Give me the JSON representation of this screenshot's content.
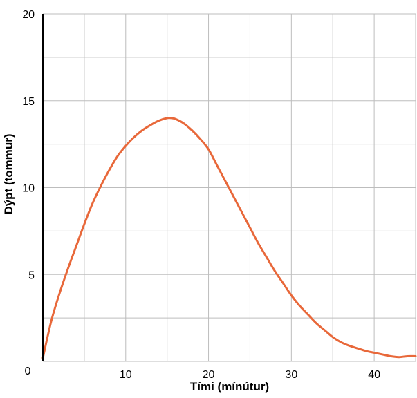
{
  "chart_data": {
    "type": "line",
    "xlabel": "Tími (mínútur)",
    "ylabel": "Dýpt (tommur)",
    "xlim": [
      0,
      45
    ],
    "ylim": [
      0,
      20
    ],
    "x_ticks": [
      10,
      20,
      30,
      40
    ],
    "y_ticks": [
      5,
      10,
      15,
      20
    ],
    "origin_label": "0",
    "grid": true,
    "grid_x_step": 5,
    "grid_y_step": 2.5,
    "line_color": "#e8683a",
    "series": [
      {
        "x": [
          0,
          1,
          2,
          3,
          4,
          5,
          6,
          7,
          8,
          9,
          10,
          11,
          12,
          13,
          14,
          15,
          15.5,
          16,
          17,
          18,
          19,
          20,
          21,
          22,
          23,
          24,
          25,
          26,
          27,
          28,
          29,
          30,
          31,
          32,
          33,
          34,
          35,
          36,
          37,
          38,
          39,
          40,
          41,
          42,
          43,
          44,
          45
        ],
        "values": [
          0.2,
          2.3,
          3.9,
          5.3,
          6.6,
          7.9,
          9.1,
          10.1,
          11.0,
          11.8,
          12.4,
          12.9,
          13.3,
          13.6,
          13.85,
          14.0,
          14.0,
          13.95,
          13.7,
          13.3,
          12.8,
          12.2,
          11.3,
          10.4,
          9.5,
          8.6,
          7.7,
          6.8,
          6.0,
          5.2,
          4.5,
          3.8,
          3.2,
          2.7,
          2.2,
          1.8,
          1.4,
          1.1,
          0.9,
          0.75,
          0.6,
          0.5,
          0.4,
          0.3,
          0.25,
          0.3,
          0.3
        ]
      }
    ]
  }
}
